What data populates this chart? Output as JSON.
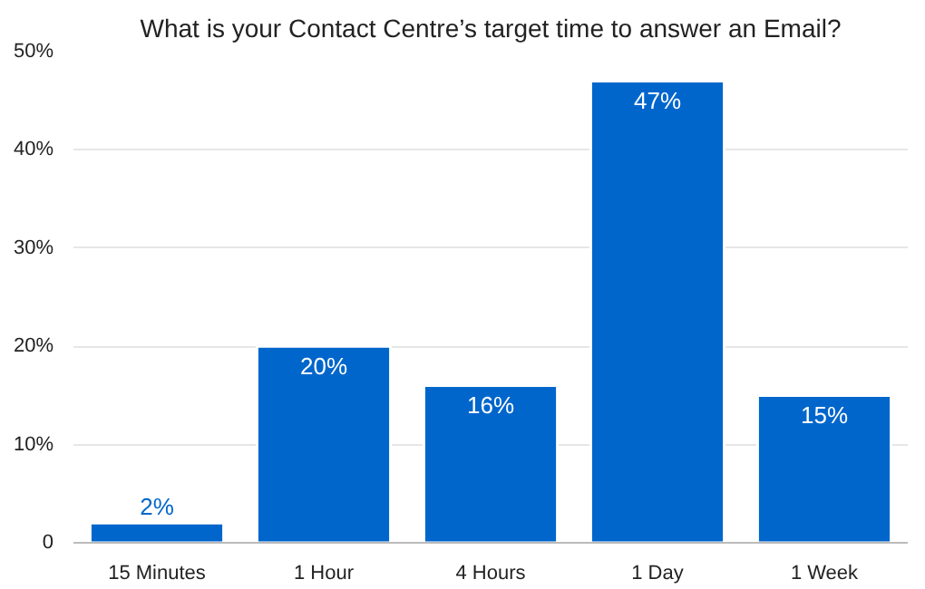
{
  "chart_data": {
    "type": "bar",
    "title": "What is your Contact Centre’s target time to answer an Email?",
    "categories": [
      "15 Minutes",
      "1 Hour",
      "4 Hours",
      "1 Day",
      "1 Week"
    ],
    "values": [
      2,
      20,
      16,
      47,
      15
    ],
    "value_labels": [
      "2%",
      "20%",
      "16%",
      "47%",
      "15%"
    ],
    "color": "#0066cc",
    "ylim": [
      0,
      50
    ],
    "yticks": [
      0,
      {
        "value": 10,
        "label": "10%"
      },
      {
        "value": 20,
        "label": "20%"
      },
      {
        "value": 30,
        "label": "30%"
      },
      {
        "value": 40,
        "label": "40%"
      },
      {
        "value": 50,
        "label": "50%"
      }
    ],
    "grid": "y"
  }
}
